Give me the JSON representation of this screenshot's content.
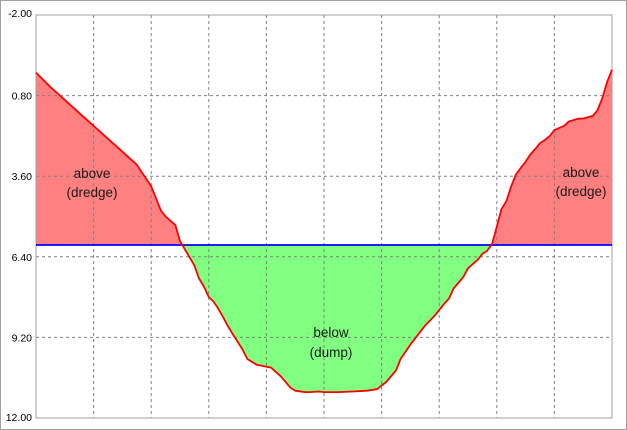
{
  "chart_data": {
    "type": "area",
    "y_inverted": true,
    "ylim": [
      -2.0,
      12.0
    ],
    "xlim": [
      0,
      100
    ],
    "y_ticks": [
      "-2.00",
      "0.80",
      "3.60",
      "6.40",
      "9.20",
      "12.00"
    ],
    "y_tick_values": [
      -2.0,
      0.8,
      3.6,
      6.4,
      9.2,
      12.0
    ],
    "x_grid_count": 10,
    "grid": true,
    "reference_level": 5.99,
    "profile": {
      "x": [
        0,
        2.5,
        5,
        7.5,
        10,
        12.5,
        15,
        17.5,
        20,
        21.7,
        22.5,
        24.2,
        25,
        27.5,
        28.3,
        29.2,
        30,
        30.8,
        31.5,
        32.5,
        33.3,
        34.2,
        35.8,
        36.7,
        38.3,
        40.8,
        42.5,
        44.2,
        45,
        46.7,
        47.5,
        49.2,
        50,
        52.5,
        55,
        57.5,
        59.2,
        60.8,
        62.5,
        63.3,
        65,
        67.5,
        69.2,
        70.8,
        71.7,
        72.5,
        74.2,
        75,
        76.7,
        77.5,
        78.3,
        79.2,
        80,
        80.8,
        81.7,
        82.5,
        83.3,
        84.2,
        85,
        85.8,
        86.7,
        87.5,
        88.3,
        89.2,
        90,
        91.7,
        92.5,
        94.2,
        95,
        96.7,
        97.5,
        98.3,
        99.2,
        100
      ],
      "y": [
        0.0,
        0.5,
        0.95,
        1.4,
        1.85,
        2.3,
        2.75,
        3.2,
        3.95,
        4.8,
        5.0,
        5.3,
        5.85,
        6.7,
        7.15,
        7.45,
        7.8,
        7.95,
        8.15,
        8.5,
        8.8,
        9.1,
        9.6,
        9.95,
        10.15,
        10.25,
        10.55,
        10.95,
        11.05,
        11.1,
        11.1,
        11.08,
        11.1,
        11.1,
        11.08,
        11.05,
        11.0,
        10.75,
        10.35,
        9.95,
        9.45,
        8.8,
        8.45,
        8.05,
        7.85,
        7.5,
        7.1,
        6.8,
        6.5,
        6.3,
        6.2,
        5.95,
        5.35,
        4.75,
        4.45,
        3.95,
        3.55,
        3.3,
        3.1,
        2.85,
        2.65,
        2.45,
        2.35,
        2.2,
        2.0,
        1.85,
        1.7,
        1.6,
        1.6,
        1.5,
        1.3,
        0.9,
        0.3,
        -0.1
      ]
    },
    "annotations": [
      {
        "line1": "above",
        "line2": "(dredge)"
      },
      {
        "line1": "below",
        "line2": "(dump)"
      },
      {
        "line1": "above",
        "line2": "(dredge)"
      }
    ],
    "colors": {
      "above_fill": "#ff8080",
      "below_fill": "#80ff80",
      "profile_line": "#ff0000",
      "reference_line": "#0000ff",
      "grid": "#808080",
      "background": "#ffffff"
    }
  }
}
